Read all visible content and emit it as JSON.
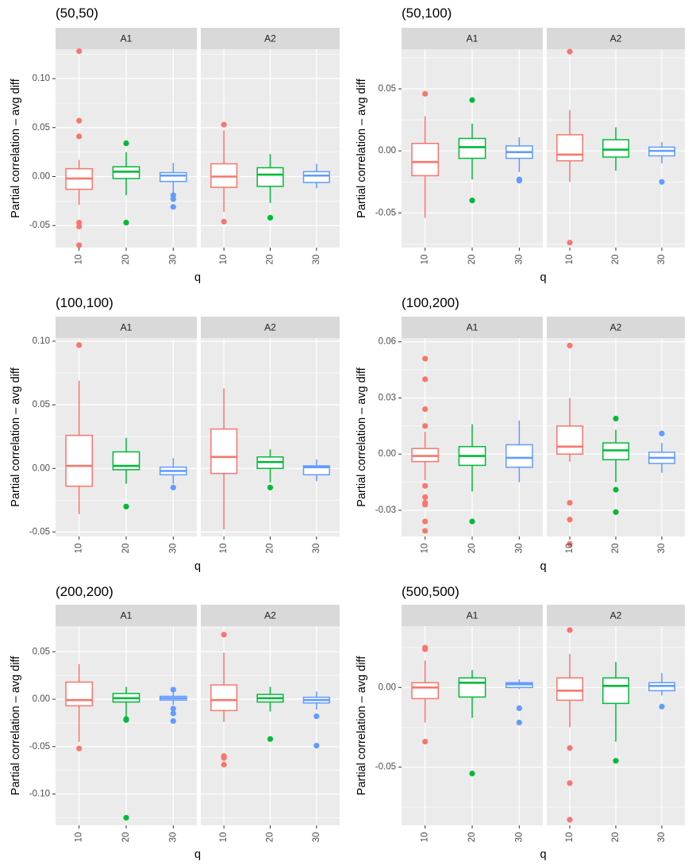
{
  "figure": {
    "group_colors": {
      "10": "#F8766D",
      "20": "#00BA38",
      "30": "#619CFF"
    },
    "panel_bg": "#EBEBEB",
    "strip_bg": "#D9D9D9",
    "grid_color": "#FFFFFF"
  },
  "chart_data": [
    {
      "type": "boxplot",
      "title": "(50,50)",
      "xlabel": "q",
      "ylabel": "Partial correlation – avg diff",
      "ylim": [
        -0.0725,
        0.13
      ],
      "y_ticks": [
        -0.05,
        0.0,
        0.05,
        0.1
      ],
      "y_tick_labels": [
        "-0.05",
        "0.00",
        "0.05",
        "0.10"
      ],
      "facets": [
        {
          "label": "A1",
          "groups": [
            {
              "q": "10",
              "whisker_low": -0.029,
              "q1": -0.013,
              "median": -0.002,
              "q3": 0.008,
              "whisker_high": 0.017,
              "outliers": [
                0.128,
                0.057,
                0.041,
                -0.047,
                -0.051,
                -0.07
              ]
            },
            {
              "q": "20",
              "whisker_low": -0.019,
              "q1": -0.002,
              "median": 0.005,
              "q3": 0.01,
              "whisker_high": 0.025,
              "outliers": [
                0.034,
                -0.047
              ]
            },
            {
              "q": "30",
              "whisker_low": -0.017,
              "q1": -0.005,
              "median": 0.001,
              "q3": 0.004,
              "whisker_high": 0.014,
              "outliers": [
                -0.019,
                -0.023,
                -0.031
              ]
            }
          ]
        },
        {
          "label": "A2",
          "groups": [
            {
              "q": "10",
              "whisker_low": -0.036,
              "q1": -0.011,
              "median": 0.0,
              "q3": 0.013,
              "whisker_high": 0.047,
              "outliers": [
                0.053,
                -0.046
              ]
            },
            {
              "q": "20",
              "whisker_low": -0.027,
              "q1": -0.01,
              "median": 0.002,
              "q3": 0.009,
              "whisker_high": 0.023,
              "outliers": [
                -0.042
              ]
            },
            {
              "q": "30",
              "whisker_low": -0.012,
              "q1": -0.006,
              "median": 0.001,
              "q3": 0.005,
              "whisker_high": 0.013,
              "outliers": []
            }
          ]
        }
      ]
    },
    {
      "type": "boxplot",
      "title": "(50,100)",
      "xlabel": "q",
      "ylabel": "Partial correlation – avg diff",
      "ylim": [
        -0.078,
        0.082
      ],
      "y_ticks": [
        -0.05,
        0.0,
        0.05
      ],
      "y_tick_labels": [
        "-0.05",
        "0.00",
        "0.05"
      ],
      "facets": [
        {
          "label": "A1",
          "groups": [
            {
              "q": "10",
              "whisker_low": -0.054,
              "q1": -0.02,
              "median": -0.009,
              "q3": 0.006,
              "whisker_high": 0.028,
              "outliers": [
                0.046
              ]
            },
            {
              "q": "20",
              "whisker_low": -0.023,
              "q1": -0.006,
              "median": 0.003,
              "q3": 0.01,
              "whisker_high": 0.022,
              "outliers": [
                0.041,
                -0.04
              ]
            },
            {
              "q": "30",
              "whisker_low": -0.017,
              "q1": -0.006,
              "median": -0.001,
              "q3": 0.004,
              "whisker_high": 0.011,
              "outliers": [
                -0.023,
                -0.024
              ]
            }
          ]
        },
        {
          "label": "A2",
          "groups": [
            {
              "q": "10",
              "whisker_low": -0.025,
              "q1": -0.008,
              "median": -0.003,
              "q3": 0.013,
              "whisker_high": 0.033,
              "outliers": [
                0.08,
                -0.074
              ]
            },
            {
              "q": "20",
              "whisker_low": -0.016,
              "q1": -0.005,
              "median": 0.001,
              "q3": 0.009,
              "whisker_high": 0.019,
              "outliers": []
            },
            {
              "q": "30",
              "whisker_low": -0.01,
              "q1": -0.004,
              "median": 0.0,
              "q3": 0.003,
              "whisker_high": 0.007,
              "outliers": [
                -0.025
              ]
            }
          ]
        }
      ]
    },
    {
      "type": "boxplot",
      "title": "(100,100)",
      "xlabel": "q",
      "ylabel": "Partial correlation – avg diff",
      "ylim": [
        -0.0535,
        0.1025
      ],
      "y_ticks": [
        -0.05,
        0.0,
        0.05,
        0.1
      ],
      "y_tick_labels": [
        "-0.05",
        "0.00",
        "0.05",
        "0.10"
      ],
      "facets": [
        {
          "label": "A1",
          "groups": [
            {
              "q": "10",
              "whisker_low": -0.036,
              "q1": -0.014,
              "median": 0.002,
              "q3": 0.026,
              "whisker_high": 0.069,
              "outliers": [
                0.097
              ]
            },
            {
              "q": "20",
              "whisker_low": -0.012,
              "q1": -0.001,
              "median": 0.002,
              "q3": 0.013,
              "whisker_high": 0.024,
              "outliers": [
                -0.03
              ]
            },
            {
              "q": "30",
              "whisker_low": -0.012,
              "q1": -0.005,
              "median": -0.002,
              "q3": 0.001,
              "whisker_high": 0.008,
              "outliers": [
                -0.015
              ]
            }
          ]
        },
        {
          "label": "A2",
          "groups": [
            {
              "q": "10",
              "whisker_low": -0.048,
              "q1": -0.004,
              "median": 0.009,
              "q3": 0.031,
              "whisker_high": 0.063,
              "outliers": []
            },
            {
              "q": "20",
              "whisker_low": -0.011,
              "q1": 0.0,
              "median": 0.005,
              "q3": 0.009,
              "whisker_high": 0.015,
              "outliers": [
                -0.015
              ]
            },
            {
              "q": "30",
              "whisker_low": -0.01,
              "q1": -0.005,
              "median": 0.001,
              "q3": 0.002,
              "whisker_high": 0.007,
              "outliers": []
            }
          ]
        }
      ]
    },
    {
      "type": "boxplot",
      "title": "(100,200)",
      "xlabel": "q",
      "ylabel": "Partial correlation – avg diff",
      "ylim": [
        -0.044,
        0.062
      ],
      "y_ticks": [
        -0.03,
        0.0,
        0.03,
        0.06
      ],
      "y_tick_labels": [
        "-0.03",
        "0.00",
        "0.03",
        "0.06"
      ],
      "facets": [
        {
          "label": "A1",
          "groups": [
            {
              "q": "10",
              "whisker_low": -0.014,
              "q1": -0.004,
              "median": -0.001,
              "q3": 0.003,
              "whisker_high": 0.012,
              "outliers": [
                0.051,
                0.04,
                0.024,
                0.015,
                -0.017,
                -0.023,
                -0.026,
                -0.027,
                -0.036,
                -0.041
              ]
            },
            {
              "q": "20",
              "whisker_low": -0.02,
              "q1": -0.006,
              "median": -0.001,
              "q3": 0.004,
              "whisker_high": 0.016,
              "outliers": [
                -0.036
              ]
            },
            {
              "q": "30",
              "whisker_low": -0.015,
              "q1": -0.007,
              "median": -0.002,
              "q3": 0.005,
              "whisker_high": 0.018,
              "outliers": []
            }
          ]
        },
        {
          "label": "A2",
          "groups": [
            {
              "q": "10",
              "whisker_low": -0.004,
              "q1": 0.0,
              "median": 0.004,
              "q3": 0.015,
              "whisker_high": 0.03,
              "outliers": [
                0.058,
                -0.026,
                -0.035,
                -0.048
              ]
            },
            {
              "q": "20",
              "whisker_low": -0.015,
              "q1": -0.003,
              "median": 0.002,
              "q3": 0.006,
              "whisker_high": 0.013,
              "outliers": [
                0.019,
                -0.019,
                -0.031
              ]
            },
            {
              "q": "30",
              "whisker_low": -0.01,
              "q1": -0.005,
              "median": -0.002,
              "q3": 0.001,
              "whisker_high": 0.006,
              "outliers": [
                0.011
              ]
            }
          ]
        }
      ]
    },
    {
      "type": "boxplot",
      "title": "(200,200)",
      "xlabel": "q",
      "ylabel": "Partial correlation – avg diff",
      "ylim": [
        -0.133,
        0.077
      ],
      "y_ticks": [
        -0.1,
        -0.05,
        0.0,
        0.05
      ],
      "y_tick_labels": [
        "-0.10",
        "-0.05",
        "0.00",
        "0.05"
      ],
      "facets": [
        {
          "label": "A1",
          "groups": [
            {
              "q": "10",
              "whisker_low": -0.045,
              "q1": -0.007,
              "median": -0.001,
              "q3": 0.018,
              "whisker_high": 0.037,
              "outliers": [
                -0.052
              ]
            },
            {
              "q": "20",
              "whisker_low": -0.019,
              "q1": -0.003,
              "median": 0.001,
              "q3": 0.006,
              "whisker_high": 0.013,
              "outliers": [
                -0.021,
                -0.022,
                -0.125
              ]
            },
            {
              "q": "30",
              "whisker_low": -0.006,
              "q1": -0.001,
              "median": 0.001,
              "q3": 0.003,
              "whisker_high": 0.007,
              "outliers": [
                0.01,
                -0.01,
                -0.015,
                -0.023
              ]
            }
          ]
        },
        {
          "label": "A2",
          "groups": [
            {
              "q": "10",
              "whisker_low": -0.024,
              "q1": -0.012,
              "median": -0.001,
              "q3": 0.015,
              "whisker_high": 0.049,
              "outliers": [
                0.068,
                -0.06,
                -0.062,
                -0.069
              ]
            },
            {
              "q": "20",
              "whisker_low": -0.013,
              "q1": -0.003,
              "median": 0.001,
              "q3": 0.005,
              "whisker_high": 0.013,
              "outliers": [
                -0.042
              ]
            },
            {
              "q": "30",
              "whisker_low": -0.011,
              "q1": -0.004,
              "median": -0.001,
              "q3": 0.002,
              "whisker_high": 0.008,
              "outliers": [
                -0.018,
                -0.049
              ]
            }
          ]
        }
      ]
    },
    {
      "type": "boxplot",
      "title": "(500,500)",
      "xlabel": "q",
      "ylabel": "Partial correlation – avg diff",
      "ylim": [
        -0.0865,
        0.0385
      ],
      "y_ticks": [
        -0.05,
        0.0
      ],
      "y_tick_labels": [
        "-0.05",
        "0.00"
      ],
      "facets": [
        {
          "label": "A1",
          "groups": [
            {
              "q": "10",
              "whisker_low": -0.022,
              "q1": -0.007,
              "median": 0.0,
              "q3": 0.003,
              "whisker_high": 0.017,
              "outliers": [
                0.024,
                0.025,
                -0.034
              ]
            },
            {
              "q": "20",
              "whisker_low": -0.019,
              "q1": -0.006,
              "median": 0.003,
              "q3": 0.006,
              "whisker_high": 0.011,
              "outliers": [
                -0.054
              ]
            },
            {
              "q": "30",
              "whisker_low": -0.001,
              "q1": 0.0,
              "median": 0.002,
              "q3": 0.003,
              "whisker_high": 0.005,
              "outliers": [
                -0.013,
                -0.022
              ]
            }
          ]
        },
        {
          "label": "A2",
          "groups": [
            {
              "q": "10",
              "whisker_low": -0.025,
              "q1": -0.008,
              "median": -0.002,
              "q3": 0.006,
              "whisker_high": 0.021,
              "outliers": [
                0.036,
                -0.038,
                -0.06,
                -0.083
              ]
            },
            {
              "q": "20",
              "whisker_low": -0.034,
              "q1": -0.01,
              "median": 0.001,
              "q3": 0.006,
              "whisker_high": 0.016,
              "outliers": [
                -0.046
              ]
            },
            {
              "q": "30",
              "whisker_low": -0.005,
              "q1": -0.002,
              "median": 0.001,
              "q3": 0.003,
              "whisker_high": 0.009,
              "outliers": [
                -0.012
              ]
            }
          ]
        }
      ]
    }
  ]
}
